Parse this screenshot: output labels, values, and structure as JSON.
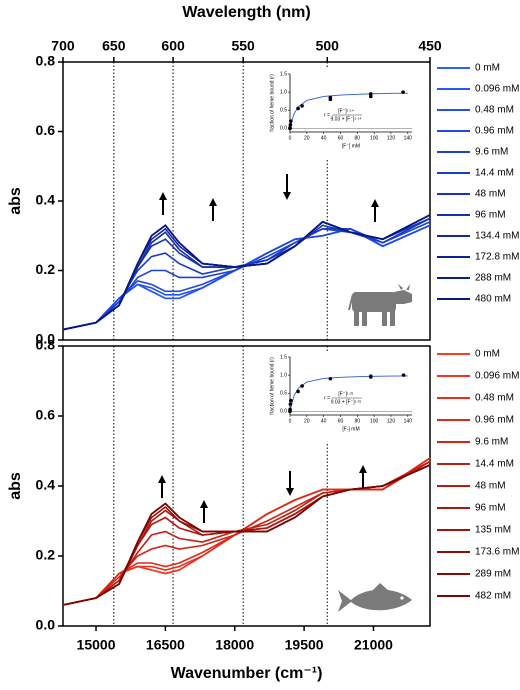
{
  "chart_data": [
    {
      "type": "line",
      "ylabel": "abs",
      "x2label": "Wavelength (nm)",
      "xlim": [
        14286,
        22222
      ],
      "ylim": [
        0,
        0.8
      ],
      "yticks": [
        {
          "value": 0,
          "label": "0.0"
        },
        0.2,
        0.4,
        0.6,
        0.8
      ],
      "x2ticks": [
        700,
        650,
        600,
        550,
        500,
        450
      ],
      "grid": "x2",
      "x": [
        14286,
        15000,
        15500,
        15900,
        16200,
        16500,
        16800,
        17300,
        18000,
        18700,
        19300,
        19900,
        20500,
        21200,
        22222
      ],
      "series": [
        {
          "name": "0 mM",
          "color": "#2a62ff",
          "values": [
            0.03,
            0.05,
            0.12,
            0.16,
            0.14,
            0.12,
            0.12,
            0.15,
            0.2,
            0.25,
            0.29,
            0.3,
            0.32,
            0.27,
            0.33
          ]
        },
        {
          "name": "0.096 mM",
          "color": "#2759f5",
          "values": [
            0.03,
            0.05,
            0.12,
            0.16,
            0.14,
            0.12,
            0.12,
            0.15,
            0.2,
            0.25,
            0.29,
            0.3,
            0.32,
            0.27,
            0.33
          ]
        },
        {
          "name": "0.48 mM",
          "color": "#2451ea",
          "values": [
            0.03,
            0.05,
            0.12,
            0.16,
            0.15,
            0.13,
            0.13,
            0.15,
            0.2,
            0.25,
            0.29,
            0.3,
            0.32,
            0.27,
            0.33
          ]
        },
        {
          "name": "0.96 mM",
          "color": "#2049de",
          "values": [
            0.03,
            0.05,
            0.12,
            0.17,
            0.16,
            0.14,
            0.14,
            0.16,
            0.2,
            0.25,
            0.29,
            0.3,
            0.32,
            0.27,
            0.33
          ]
        },
        {
          "name": "9.6 mM",
          "color": "#1d42d2",
          "values": [
            0.03,
            0.05,
            0.11,
            0.18,
            0.2,
            0.2,
            0.18,
            0.18,
            0.2,
            0.24,
            0.28,
            0.32,
            0.32,
            0.28,
            0.34
          ]
        },
        {
          "name": "14.4 mM",
          "color": "#1a3bc6",
          "values": [
            0.03,
            0.05,
            0.11,
            0.2,
            0.24,
            0.25,
            0.22,
            0.19,
            0.21,
            0.23,
            0.28,
            0.32,
            0.31,
            0.28,
            0.35
          ]
        },
        {
          "name": "48 mM",
          "color": "#1734ba",
          "values": [
            0.03,
            0.05,
            0.1,
            0.21,
            0.27,
            0.29,
            0.25,
            0.21,
            0.21,
            0.23,
            0.27,
            0.33,
            0.31,
            0.29,
            0.35
          ]
        },
        {
          "name": "96 mM",
          "color": "#142ead",
          "values": [
            0.03,
            0.05,
            0.1,
            0.21,
            0.28,
            0.31,
            0.26,
            0.21,
            0.21,
            0.22,
            0.27,
            0.34,
            0.31,
            0.29,
            0.36
          ]
        },
        {
          "name": "134.4 mM",
          "color": "#1128a1",
          "values": [
            0.03,
            0.05,
            0.1,
            0.22,
            0.29,
            0.32,
            0.27,
            0.22,
            0.21,
            0.22,
            0.27,
            0.34,
            0.31,
            0.29,
            0.36
          ]
        },
        {
          "name": "172.8 mM",
          "color": "#0e2295",
          "values": [
            0.03,
            0.05,
            0.1,
            0.22,
            0.3,
            0.33,
            0.28,
            0.22,
            0.21,
            0.22,
            0.27,
            0.34,
            0.31,
            0.29,
            0.36
          ]
        },
        {
          "name": "288 mM",
          "color": "#0b1d89",
          "values": [
            0.03,
            0.05,
            0.1,
            0.22,
            0.3,
            0.33,
            0.28,
            0.22,
            0.21,
            0.22,
            0.27,
            0.34,
            0.31,
            0.29,
            0.36
          ]
        },
        {
          "name": "480 mM",
          "color": "#08187d",
          "values": [
            0.03,
            0.05,
            0.1,
            0.22,
            0.3,
            0.33,
            0.28,
            0.22,
            0.21,
            0.22,
            0.27,
            0.34,
            0.31,
            0.29,
            0.36
          ]
        }
      ]
    },
    {
      "type": "line",
      "ylabel": "abs",
      "xlabel": "Wavenumber (cm⁻¹)",
      "xlim": [
        14286,
        22222
      ],
      "ylim": [
        0,
        0.8
      ],
      "yticks": [
        {
          "value": 0,
          "label": "0.0"
        },
        0.2,
        0.4,
        0.6,
        0.8
      ],
      "xticks": [
        15000,
        16500,
        18000,
        19500,
        21000
      ],
      "grid": "x2",
      "x": [
        14286,
        15000,
        15500,
        15900,
        16200,
        16500,
        16800,
        17300,
        18000,
        18700,
        19300,
        19900,
        20500,
        21200,
        22222
      ],
      "series": [
        {
          "name": "0 mM",
          "color": "#ff3b22",
          "values": [
            0.06,
            0.08,
            0.15,
            0.17,
            0.16,
            0.15,
            0.16,
            0.2,
            0.26,
            0.32,
            0.36,
            0.39,
            0.39,
            0.39,
            0.48
          ]
        },
        {
          "name": "0.096 mM",
          "color": "#f3351f",
          "values": [
            0.06,
            0.08,
            0.15,
            0.17,
            0.16,
            0.15,
            0.16,
            0.2,
            0.26,
            0.32,
            0.36,
            0.39,
            0.39,
            0.39,
            0.48
          ]
        },
        {
          "name": "0.48 mM",
          "color": "#e6301c",
          "values": [
            0.06,
            0.08,
            0.15,
            0.17,
            0.17,
            0.16,
            0.17,
            0.2,
            0.26,
            0.32,
            0.36,
            0.39,
            0.39,
            0.39,
            0.48
          ]
        },
        {
          "name": "0.96 mM",
          "color": "#da2a19",
          "values": [
            0.06,
            0.08,
            0.15,
            0.18,
            0.18,
            0.17,
            0.18,
            0.21,
            0.26,
            0.32,
            0.36,
            0.39,
            0.39,
            0.39,
            0.48
          ]
        },
        {
          "name": "9.6 mM",
          "color": "#cd2516",
          "values": [
            0.06,
            0.08,
            0.14,
            0.2,
            0.22,
            0.23,
            0.22,
            0.23,
            0.26,
            0.3,
            0.34,
            0.38,
            0.39,
            0.39,
            0.47
          ]
        },
        {
          "name": "14.4 mM",
          "color": "#c12013",
          "values": [
            0.06,
            0.08,
            0.13,
            0.21,
            0.26,
            0.27,
            0.25,
            0.24,
            0.27,
            0.29,
            0.33,
            0.38,
            0.39,
            0.4,
            0.47
          ]
        },
        {
          "name": "48 mM",
          "color": "#b41b10",
          "values": [
            0.06,
            0.08,
            0.13,
            0.23,
            0.29,
            0.31,
            0.28,
            0.26,
            0.27,
            0.28,
            0.32,
            0.37,
            0.39,
            0.4,
            0.46
          ]
        },
        {
          "name": "96 mM",
          "color": "#a8160d",
          "values": [
            0.06,
            0.08,
            0.12,
            0.23,
            0.3,
            0.33,
            0.3,
            0.26,
            0.27,
            0.28,
            0.32,
            0.37,
            0.39,
            0.4,
            0.46
          ]
        },
        {
          "name": "135 mM",
          "color": "#9c120a",
          "values": [
            0.06,
            0.08,
            0.12,
            0.24,
            0.31,
            0.34,
            0.3,
            0.27,
            0.27,
            0.27,
            0.31,
            0.37,
            0.39,
            0.4,
            0.46
          ]
        },
        {
          "name": "173.6 mM",
          "color": "#900e08",
          "values": [
            0.06,
            0.08,
            0.12,
            0.24,
            0.32,
            0.35,
            0.31,
            0.27,
            0.27,
            0.27,
            0.31,
            0.37,
            0.39,
            0.4,
            0.46
          ]
        },
        {
          "name": "289 mM",
          "color": "#840a06",
          "values": [
            0.06,
            0.08,
            0.12,
            0.24,
            0.32,
            0.35,
            0.31,
            0.27,
            0.27,
            0.27,
            0.31,
            0.37,
            0.39,
            0.4,
            0.46
          ]
        },
        {
          "name": "482 mM",
          "color": "#780604",
          "values": [
            0.06,
            0.08,
            0.12,
            0.24,
            0.32,
            0.35,
            0.31,
            0.27,
            0.27,
            0.27,
            0.31,
            0.37,
            0.39,
            0.4,
            0.46
          ]
        }
      ]
    },
    {
      "type": "scatter",
      "ylabel": "fraction of heme bound (r)",
      "xlabel": "[F⁻] mM",
      "xlim": [
        0,
        145
      ],
      "ylim": [
        -0.1,
        1.5
      ],
      "xticks": [
        0,
        20,
        40,
        60,
        80,
        100,
        120,
        140
      ],
      "yticks": [
        {
          "value": 0,
          "label": "0.0"
        },
        0.5,
        {
          "value": 1,
          "label": "1.0"
        },
        1.5
      ],
      "points": {
        "color": "#000000",
        "x": [
          0,
          0.096,
          0.48,
          0.96,
          9.6,
          14.4,
          48,
          48,
          96,
          96,
          134.4
        ],
        "y": [
          0,
          0.02,
          0.1,
          0.2,
          0.55,
          0.62,
          0.85,
          0.8,
          0.95,
          0.88,
          1.0
        ]
      },
      "fit": {
        "color": "#2a5bd7",
        "x": [
          0,
          2,
          5,
          10,
          20,
          40,
          60,
          80,
          100,
          120,
          140
        ],
        "y": [
          0,
          0.2,
          0.41,
          0.6,
          0.77,
          0.88,
          0.92,
          0.94,
          0.955,
          0.966,
          0.97
        ]
      },
      "equation": {
        "lhs": "r =",
        "numerator": "[F⁻]¹·¹⁴",
        "denominator": "9.03 + [F⁻]¹·¹⁴"
      }
    },
    {
      "type": "scatter",
      "ylabel": "fraction of heme bound (r)",
      "xlabel": "[F-] mM",
      "xlim": [
        0,
        145
      ],
      "ylim": [
        -0.1,
        1.5
      ],
      "xticks": [
        0,
        20,
        40,
        60,
        80,
        100,
        120,
        140
      ],
      "yticks": [
        {
          "value": 0,
          "label": "0.0"
        },
        0.5,
        {
          "value": 1,
          "label": "1.0"
        },
        1.5
      ],
      "points": {
        "color": "#000000",
        "x": [
          0,
          0.096,
          0.48,
          0.96,
          9.6,
          14.4,
          48,
          96,
          96,
          135
        ],
        "y": [
          0,
          0.05,
          0.2,
          0.3,
          0.55,
          0.7,
          0.9,
          0.95,
          0.97,
          1.0
        ]
      },
      "fit": {
        "color": "#2a5bd7",
        "x": [
          0,
          2,
          5,
          10,
          20,
          40,
          60,
          80,
          100,
          120,
          140
        ],
        "y": [
          0,
          0.2,
          0.44,
          0.64,
          0.81,
          0.91,
          0.94,
          0.957,
          0.967,
          0.973,
          0.978
        ]
      },
      "equation": {
        "lhs": "r =",
        "numerator": "[F⁻]¹·²¹",
        "denominator": "9.03 + [F⁻]¹·²¹"
      }
    }
  ]
}
